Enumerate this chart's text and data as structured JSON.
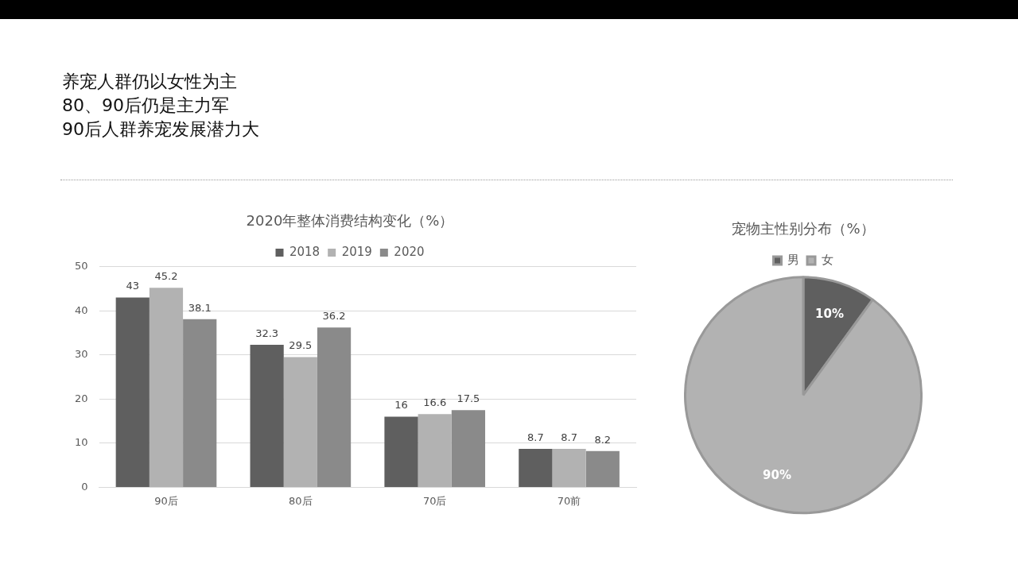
{
  "chart_data": [
    {
      "type": "other",
      "annotations": [
        "养宠人群仍以女性为主",
        "80、90后仍是主力军",
        "90后人群养宠发展潜力大"
      ]
    },
    {
      "type": "bar",
      "title": "2020年整体消费结构变化（%）",
      "categories": [
        "90后",
        "80后",
        "70后",
        "70前"
      ],
      "series": [
        {
          "name": "2018",
          "color": "#5f5f5f",
          "values": [
            43,
            32.3,
            16,
            8.7
          ]
        },
        {
          "name": "2019",
          "color": "#b2b2b2",
          "values": [
            45.2,
            29.5,
            16.6,
            8.7
          ]
        },
        {
          "name": "2020",
          "color": "#8a8a8a",
          "values": [
            38.1,
            36.2,
            17.5,
            8.2
          ]
        }
      ],
      "ylim": [
        0,
        50
      ],
      "yticks": [
        0,
        10,
        20,
        30,
        40,
        50
      ],
      "grid": "y",
      "legend": "top",
      "data_labels": true
    },
    {
      "type": "pie",
      "title": "宠物主性别分布（%）",
      "categories": [
        "男",
        "女"
      ],
      "values": [
        10,
        90
      ],
      "colors": [
        "#5f5f5f",
        "#b2b2b2"
      ],
      "value_labels": [
        "10%",
        "90%"
      ],
      "legend": "top"
    }
  ]
}
